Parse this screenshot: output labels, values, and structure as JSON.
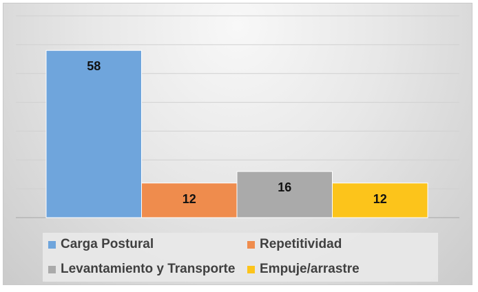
{
  "chart_data": {
    "type": "bar",
    "categories": [
      "Carga Postural",
      "Repetitividad",
      "Levantamiento y Transporte",
      "Empuje/arrastre"
    ],
    "values": [
      58,
      12,
      16,
      12
    ],
    "data_labels": [
      "58",
      "12",
      "16",
      "12"
    ],
    "colors": [
      "#6fa5dc",
      "#ef8c4d",
      "#aaaaaa",
      "#fcc41b"
    ],
    "ylim": [
      0,
      70
    ],
    "grid": true,
    "legend_position": "bottom",
    "title": "",
    "xlabel": "",
    "ylabel": ""
  },
  "legend": {
    "items": [
      {
        "label": "Carga Postural",
        "color": "#6fa5dc"
      },
      {
        "label": "Repetitividad",
        "color": "#ef8c4d"
      },
      {
        "label": "Levantamiento y Transporte",
        "color": "#aaaaaa"
      },
      {
        "label": "Empuje/arrastre",
        "color": "#fcc41b"
      }
    ]
  }
}
